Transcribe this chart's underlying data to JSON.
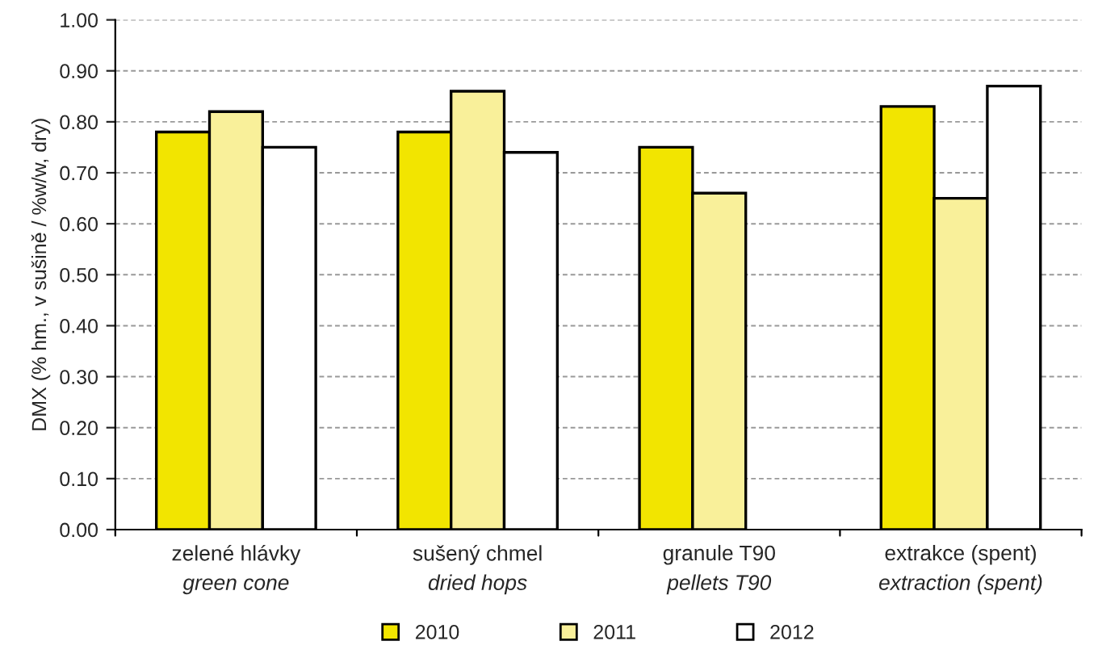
{
  "chart_data": {
    "type": "bar",
    "ylabel": "DMX (% hm., v sušině / %w/w, dry)",
    "categories": [
      "zelené hlávky\ngreen cone",
      "sušený chmel\ndried hops",
      "granule T90\npellets T90",
      "extrakce (spent)\nextraction (spent)"
    ],
    "series": [
      {
        "name": "2010",
        "color": "#f2e500",
        "values": [
          0.78,
          0.78,
          0.75,
          0.83
        ]
      },
      {
        "name": "2011",
        "color": "#f9f09a",
        "values": [
          0.82,
          0.86,
          0.66,
          0.65
        ]
      },
      {
        "name": "2012",
        "color": "#ffffff",
        "values": [
          0.75,
          0.74,
          null,
          0.87
        ]
      }
    ],
    "ylim": [
      0,
      1.0
    ],
    "yticks": [
      {
        "value": 0,
        "label": "0.00"
      },
      {
        "value": 0.1,
        "label": "0.10"
      },
      {
        "value": 0.2,
        "label": "0.20"
      },
      {
        "value": 0.3,
        "label": "0.30"
      },
      {
        "value": 0.4,
        "label": "0.40"
      },
      {
        "value": 0.5,
        "label": "0.50"
      },
      {
        "value": 0.6,
        "label": "0.60"
      },
      {
        "value": 0.7,
        "label": "0.70"
      },
      {
        "value": 0.8,
        "label": "0.80"
      },
      {
        "value": 0.9,
        "label": "0.90"
      },
      {
        "value": 1.0,
        "label": "1.00"
      }
    ],
    "grid": "y",
    "legend": "bottom"
  }
}
